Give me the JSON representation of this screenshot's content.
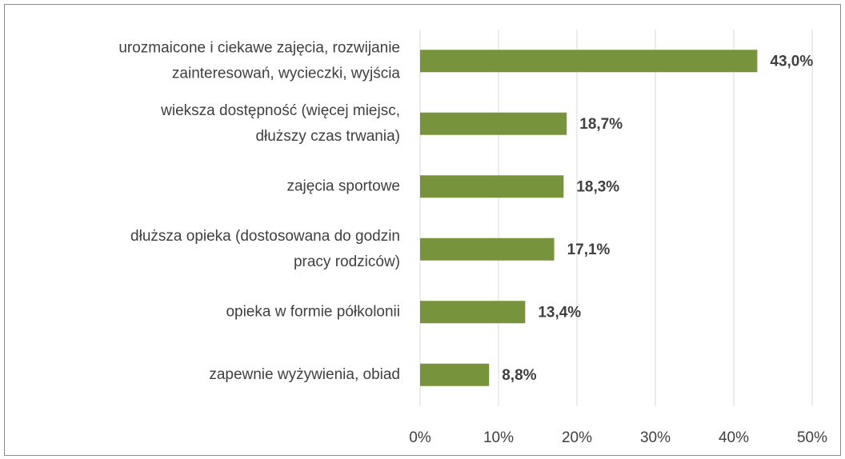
{
  "chart_data": {
    "type": "barh",
    "categories": [
      [
        "urozmaicone i ciekawe zajęcia, rozwijanie",
        "zainteresowań, wycieczki, wyjścia"
      ],
      [
        "wieksza dostępność (więcej miejsc,",
        "dłuższy czas trwania)"
      ],
      [
        "zajęcia sportowe"
      ],
      [
        "dłuższa opieka (dostosowana do godzin",
        "pracy rodziców)"
      ],
      [
        "opieka w formie półkolonii"
      ],
      [
        "zapewnie wyżywienia, obiad"
      ]
    ],
    "values": [
      43.0,
      18.7,
      18.3,
      17.1,
      13.4,
      8.8
    ],
    "value_labels": [
      "43,0%",
      "18,7%",
      "18,3%",
      "17,1%",
      "13,4%",
      "8,8%"
    ],
    "color": "#77933c",
    "xlim": [
      0,
      50
    ],
    "xticks": [
      {
        "value": 0,
        "label": "0%"
      },
      {
        "value": 10,
        "label": "10%"
      },
      {
        "value": 20,
        "label": "20%"
      },
      {
        "value": 30,
        "label": "30%"
      },
      {
        "value": 40,
        "label": "40%"
      },
      {
        "value": 50,
        "label": "50%"
      }
    ],
    "grid": true
  }
}
